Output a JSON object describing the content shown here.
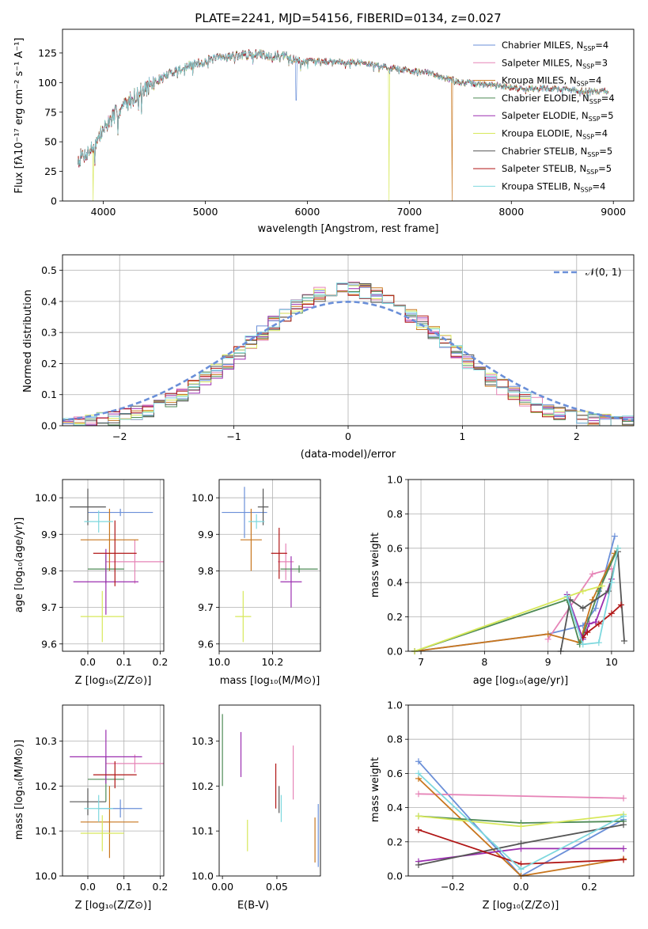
{
  "chart_data": [
    {
      "id": "spectrum",
      "type": "line",
      "title": "PLATE=2241, MJD=54156, FIBERID=0134, z=0.027",
      "xlabel": "wavelength [Angstrom, rest frame]",
      "ylabel": "Flux [fλ10⁻¹⁷ erg cm⁻² s⁻¹ A⁻¹]",
      "xlim": [
        3600,
        9200
      ],
      "ylim": [
        0,
        145
      ],
      "xticks": [
        "4000",
        "5000",
        "6000",
        "7000",
        "8000",
        "9000"
      ],
      "yticks": [
        "0",
        "25",
        "50",
        "75",
        "100",
        "125"
      ],
      "grid": false,
      "legend_position": "top-right",
      "series": [
        {
          "name": "Chabrier MILES, N",
          "sub": "SSP",
          "suffix": "=4",
          "color": "#6a8fd8"
        },
        {
          "name": "Salpeter MILES, N",
          "sub": "SSP",
          "suffix": "=3",
          "color": "#e684b7"
        },
        {
          "name": "Kroupa MILES, N",
          "sub": "SSP",
          "suffix": "=4",
          "color": "#c8761e"
        },
        {
          "name": "Chabrier ELODIE, N",
          "sub": "SSP",
          "suffix": "=4",
          "color": "#4d8a55"
        },
        {
          "name": "Salpeter ELODIE, N",
          "sub": "SSP",
          "suffix": "=5",
          "color": "#9b2fb0"
        },
        {
          "name": "Kroupa ELODIE, N",
          "sub": "SSP",
          "suffix": "=4",
          "color": "#d7e85a"
        },
        {
          "name": "Chabrier STELIB, N",
          "sub": "SSP",
          "suffix": "=5",
          "color": "#555555"
        },
        {
          "name": "Salpeter STELIB, N",
          "sub": "SSP",
          "suffix": "=5",
          "color": "#b01515"
        },
        {
          "name": "Kroupa STELIB, N",
          "sub": "SSP",
          "suffix": "=4",
          "color": "#7ed8de"
        }
      ],
      "continuum": {
        "x": [
          3750,
          3900,
          4000,
          4100,
          4300,
          4500,
          4700,
          5000,
          5200,
          5500,
          5800,
          5900,
          6200,
          6500,
          6800,
          7000,
          7200,
          7500,
          7800,
          8100,
          8400,
          8700,
          8950
        ],
        "y": [
          35,
          45,
          60,
          72,
          88,
          100,
          110,
          118,
          122,
          124,
          122,
          118,
          118,
          117,
          113,
          110,
          108,
          100,
          98,
          95,
          95,
          93,
          93
        ]
      },
      "drops": [
        {
          "x": 3900,
          "y": 0,
          "color": "#d7e85a"
        },
        {
          "x": 6800,
          "y": 0,
          "color": "#d7e85a"
        },
        {
          "x": 7420,
          "y": 0,
          "color": "#c8761e"
        },
        {
          "x": 5890,
          "y": 85,
          "color": "#6a8fd8"
        }
      ]
    },
    {
      "id": "residuals",
      "type": "histogram",
      "xlabel": "(data-model)/error",
      "ylabel": "Normed distribution",
      "xlim": [
        -2.5,
        2.5
      ],
      "ylim": [
        0,
        0.55
      ],
      "xticks": [
        -2,
        -1,
        0,
        1,
        2
      ],
      "yticks": [
        0,
        0.1,
        0.2,
        0.3,
        0.4,
        0.5
      ],
      "xticklabels": [
        "−2",
        "−1",
        "0",
        "1",
        "2"
      ],
      "yticklabels": [
        "0.0",
        "0.1",
        "0.2",
        "0.3",
        "0.4",
        "0.5"
      ],
      "grid": true,
      "legend_position": "top-right",
      "gauss_label": "𝒩(0, 1)",
      "gauss_color": "#6a8fd8"
    },
    {
      "id": "age-vs-Z",
      "type": "errorbar",
      "xlabel": "Z [log₁₀(Z/Z⊙)]",
      "ylabel": "age  [log₁₀(age/yr)]",
      "xlim": [
        -0.07,
        0.21
      ],
      "ylim": [
        9.58,
        10.05
      ],
      "xticks": [
        0.0,
        0.1,
        0.2
      ],
      "yticks": [
        9.6,
        9.7,
        9.8,
        9.9,
        10.0
      ],
      "xticklabels": [
        "0.0",
        "0.1",
        "0.2"
      ],
      "yticklabels": [
        "9.6",
        "9.7",
        "9.8",
        "9.9",
        "10.0"
      ],
      "grid": true,
      "points": [
        {
          "x": 0.09,
          "xe": 0.09,
          "y": 9.96,
          "ye": 0.01,
          "color": "#6a8fd8"
        },
        {
          "x": 0.13,
          "xe": 0.08,
          "y": 9.825,
          "ye": 0.06,
          "color": "#e684b7"
        },
        {
          "x": 0.06,
          "xe": 0.08,
          "y": 9.885,
          "ye": 0.085,
          "color": "#c8761e"
        },
        {
          "x": 0.05,
          "xe": 0.05,
          "y": 9.805,
          "ye": 0.04,
          "color": "#4d8a55"
        },
        {
          "x": 0.05,
          "xe": 0.09,
          "y": 9.77,
          "ye": 0.09,
          "color": "#9b2fb0"
        },
        {
          "x": 0.04,
          "xe": 0.06,
          "y": 9.675,
          "ye": 0.07,
          "color": "#d7e85a"
        },
        {
          "x": 0.0,
          "xe": 0.05,
          "y": 9.975,
          "ye": 0.05,
          "color": "#555555"
        },
        {
          "x": 0.075,
          "xe": 0.06,
          "y": 9.848,
          "ye": 0.09,
          "color": "#b01515"
        },
        {
          "x": 0.03,
          "xe": 0.04,
          "y": 9.935,
          "ye": 0.03,
          "color": "#7ed8de"
        }
      ]
    },
    {
      "id": "age-vs-mass",
      "type": "errorbar",
      "xlabel": "mass [log₁₀(M/M⊙)]",
      "ylabel": "",
      "xlim": [
        10.0,
        10.38
      ],
      "ylim": [
        9.58,
        10.05
      ],
      "xticks": [
        10.0,
        10.2
      ],
      "yticks": [
        9.6,
        9.7,
        9.8,
        9.9,
        10.0
      ],
      "xticklabels": [
        "10.0",
        "10.2"
      ],
      "yticklabels": [
        "9.6",
        "9.7",
        "9.8",
        "9.9",
        "10.0"
      ],
      "grid": true,
      "points": [
        {
          "x": 10.095,
          "xe": 0.085,
          "y": 9.96,
          "ye": 0.07,
          "color": "#6a8fd8"
        },
        {
          "x": 10.25,
          "xe": 0.03,
          "y": 9.825,
          "ye": 0.05,
          "color": "#e684b7"
        },
        {
          "x": 10.12,
          "xe": 0.04,
          "y": 9.885,
          "ye": 0.085,
          "color": "#c8761e"
        },
        {
          "x": 10.3,
          "xe": 0.07,
          "y": 9.805,
          "ye": 0.01,
          "color": "#4d8a55"
        },
        {
          "x": 10.27,
          "xe": 0.04,
          "y": 9.77,
          "ye": 0.07,
          "color": "#9b2fb0"
        },
        {
          "x": 10.09,
          "xe": 0.03,
          "y": 9.675,
          "ye": 0.07,
          "color": "#d7e85a"
        },
        {
          "x": 10.165,
          "xe": 0.02,
          "y": 9.975,
          "ye": 0.05,
          "color": "#555555"
        },
        {
          "x": 10.225,
          "xe": 0.03,
          "y": 9.848,
          "ye": 0.07,
          "color": "#b01515"
        },
        {
          "x": 10.14,
          "xe": 0.03,
          "y": 9.935,
          "ye": 0.02,
          "color": "#7ed8de"
        }
      ]
    },
    {
      "id": "weight-vs-age",
      "type": "line",
      "xlabel": "age  [log₁₀(age/yr)]",
      "ylabel": "mass weight",
      "xlim": [
        6.8,
        10.35
      ],
      "ylim": [
        0,
        1.0
      ],
      "xticks": [
        7,
        8,
        9,
        10
      ],
      "yticks": [
        0,
        0.2,
        0.4,
        0.6,
        0.8,
        1.0
      ],
      "xticklabels": [
        "7",
        "8",
        "9",
        "10"
      ],
      "yticklabels": [
        "0.0",
        "0.2",
        "0.4",
        "0.6",
        "0.8",
        "1.0"
      ],
      "grid": true,
      "series": [
        {
          "color": "#6a8fd8",
          "x": [
            6.9,
            9.0,
            9.55,
            9.75,
            10.05
          ],
          "y": [
            0.0,
            0.1,
            0.15,
            0.25,
            0.67
          ]
        },
        {
          "color": "#e684b7",
          "x": [
            9.0,
            9.7,
            10.0
          ],
          "y": [
            0.07,
            0.45,
            0.48
          ]
        },
        {
          "color": "#c8761e",
          "x": [
            6.9,
            9.0,
            9.5,
            9.7,
            10.05
          ],
          "y": [
            0.0,
            0.1,
            0.05,
            0.3,
            0.57
          ]
        },
        {
          "color": "#4d8a55",
          "x": [
            6.9,
            9.3,
            9.5,
            9.8,
            10.1
          ],
          "y": [
            0.0,
            0.3,
            0.04,
            0.35,
            0.6
          ]
        },
        {
          "color": "#9b2fb0",
          "x": [
            9.3,
            9.55,
            9.65,
            9.75,
            10.0
          ],
          "y": [
            0.33,
            0.07,
            0.16,
            0.17,
            0.42
          ]
        },
        {
          "color": "#d7e85a",
          "x": [
            6.9,
            9.55,
            9.85
          ],
          "y": [
            0.0,
            0.35,
            0.38
          ]
        },
        {
          "color": "#555555",
          "x": [
            9.2,
            9.35,
            9.55,
            9.95,
            10.1,
            10.2
          ],
          "y": [
            0.0,
            0.3,
            0.25,
            0.35,
            0.58,
            0.06
          ]
        },
        {
          "color": "#b01515",
          "x": [
            9.55,
            9.62,
            9.8,
            10.0,
            10.15
          ],
          "y": [
            0.08,
            0.11,
            0.16,
            0.22,
            0.27
          ]
        },
        {
          "color": "#7ed8de",
          "x": [
            9.3,
            9.55,
            9.8,
            10.0,
            10.1
          ],
          "y": [
            0.32,
            0.04,
            0.05,
            0.4,
            0.6
          ]
        }
      ]
    },
    {
      "id": "mass-vs-Z",
      "type": "errorbar",
      "xlabel": "Z [log₁₀(Z/Z⊙)]",
      "ylabel": "mass [log₁₀(M/M⊙)]",
      "xlim": [
        -0.07,
        0.21
      ],
      "ylim": [
        10.0,
        10.38
      ],
      "xticks": [
        0.0,
        0.1,
        0.2
      ],
      "yticks": [
        10.0,
        10.1,
        10.2,
        10.3
      ],
      "xticklabels": [
        "0.0",
        "0.1",
        "0.2"
      ],
      "yticklabels": [
        "10.0",
        "10.1",
        "10.2",
        "10.3"
      ],
      "grid": true,
      "points": [
        {
          "x": 0.09,
          "xe": 0.06,
          "y": 10.15,
          "ye": 0.02,
          "color": "#6a8fd8"
        },
        {
          "x": 0.13,
          "xe": 0.08,
          "y": 10.25,
          "ye": 0.02,
          "color": "#e684b7"
        },
        {
          "x": 0.06,
          "xe": 0.08,
          "y": 10.12,
          "ye": 0.08,
          "color": "#c8761e"
        },
        {
          "x": 0.05,
          "xe": 0.05,
          "y": 10.215,
          "ye": 0.05,
          "color": "#4d8a55"
        },
        {
          "x": 0.05,
          "xe": 0.1,
          "y": 10.265,
          "ye": 0.06,
          "color": "#9b2fb0"
        },
        {
          "x": 0.04,
          "xe": 0.06,
          "y": 10.095,
          "ye": 0.04,
          "color": "#d7e85a"
        },
        {
          "x": 0.0,
          "xe": 0.05,
          "y": 10.165,
          "ye": 0.03,
          "color": "#555555"
        },
        {
          "x": 0.075,
          "xe": 0.06,
          "y": 10.225,
          "ye": 0.03,
          "color": "#b01515"
        },
        {
          "x": 0.03,
          "xe": 0.04,
          "y": 10.15,
          "ye": 0.03,
          "color": "#7ed8de"
        }
      ]
    },
    {
      "id": "mass-vs-EBV",
      "type": "errorbar",
      "xlabel": "E(B-V)",
      "ylabel": "",
      "xlim": [
        -0.003,
        0.09
      ],
      "ylim": [
        10.0,
        10.38
      ],
      "xticks": [
        0.0,
        0.05
      ],
      "yticks": [
        10.0,
        10.1,
        10.2,
        10.3
      ],
      "xticklabels": [
        "0.00",
        "0.05"
      ],
      "yticklabels": [
        "10.0",
        "10.1",
        "10.2",
        "10.3"
      ],
      "grid": false,
      "points": [
        {
          "x": 0.088,
          "xe": 0,
          "y": 10.09,
          "ye": 0.07,
          "color": "#6a8fd8"
        },
        {
          "x": 0.065,
          "xe": 0,
          "y": 10.23,
          "ye": 0.06,
          "color": "#e684b7"
        },
        {
          "x": 0.085,
          "xe": 0,
          "y": 10.08,
          "ye": 0.05,
          "color": "#c8761e"
        },
        {
          "x": 0.0,
          "xe": 0,
          "y": 10.28,
          "ye": 0.08,
          "color": "#4d8a55"
        },
        {
          "x": 0.017,
          "xe": 0,
          "y": 10.27,
          "ye": 0.05,
          "color": "#9b2fb0"
        },
        {
          "x": 0.023,
          "xe": 0,
          "y": 10.09,
          "ye": 0.035,
          "color": "#d7e85a"
        },
        {
          "x": 0.052,
          "xe": 0,
          "y": 10.17,
          "ye": 0.03,
          "color": "#555555"
        },
        {
          "x": 0.049,
          "xe": 0,
          "y": 10.2,
          "ye": 0.05,
          "color": "#b01515"
        },
        {
          "x": 0.054,
          "xe": 0,
          "y": 10.15,
          "ye": 0.03,
          "color": "#7ed8de"
        }
      ]
    },
    {
      "id": "weight-vs-Z",
      "type": "line",
      "xlabel": "Z [log₁₀(Z/Z⊙)]",
      "ylabel": "mass weight",
      "xlim": [
        -0.33,
        0.33
      ],
      "ylim": [
        0,
        1.0
      ],
      "xticks": [
        -0.2,
        0.0,
        0.2
      ],
      "yticks": [
        0,
        0.2,
        0.4,
        0.6,
        0.8,
        1.0
      ],
      "xticklabels": [
        "−0.2",
        "0.0",
        "0.2"
      ],
      "yticklabels": [
        "0.0",
        "0.2",
        "0.4",
        "0.6",
        "0.8",
        "1.0"
      ],
      "grid": true,
      "series": [
        {
          "color": "#6a8fd8",
          "x": [
            -0.3,
            0.0,
            0.3
          ],
          "y": [
            0.67,
            0.0,
            0.33
          ]
        },
        {
          "color": "#e684b7",
          "x": [
            -0.3,
            0.3
          ],
          "y": [
            0.48,
            0.455
          ]
        },
        {
          "color": "#c8761e",
          "x": [
            -0.3,
            0.0,
            0.3
          ],
          "y": [
            0.57,
            0.0,
            0.1
          ]
        },
        {
          "color": "#4d8a55",
          "x": [
            -0.3,
            0.0,
            0.3
          ],
          "y": [
            0.35,
            0.31,
            0.32
          ]
        },
        {
          "color": "#9b2fb0",
          "x": [
            -0.3,
            0.0,
            0.3
          ],
          "y": [
            0.085,
            0.16,
            0.16
          ]
        },
        {
          "color": "#d7e85a",
          "x": [
            -0.3,
            0.0,
            0.3
          ],
          "y": [
            0.35,
            0.29,
            0.36
          ]
        },
        {
          "color": "#555555",
          "x": [
            -0.3,
            0.0,
            0.3
          ],
          "y": [
            0.065,
            0.19,
            0.3
          ]
        },
        {
          "color": "#b01515",
          "x": [
            -0.3,
            0.0,
            0.3
          ],
          "y": [
            0.27,
            0.07,
            0.095
          ]
        },
        {
          "color": "#7ed8de",
          "x": [
            -0.3,
            0.0,
            0.3
          ],
          "y": [
            0.6,
            0.04,
            0.35
          ]
        }
      ]
    }
  ]
}
